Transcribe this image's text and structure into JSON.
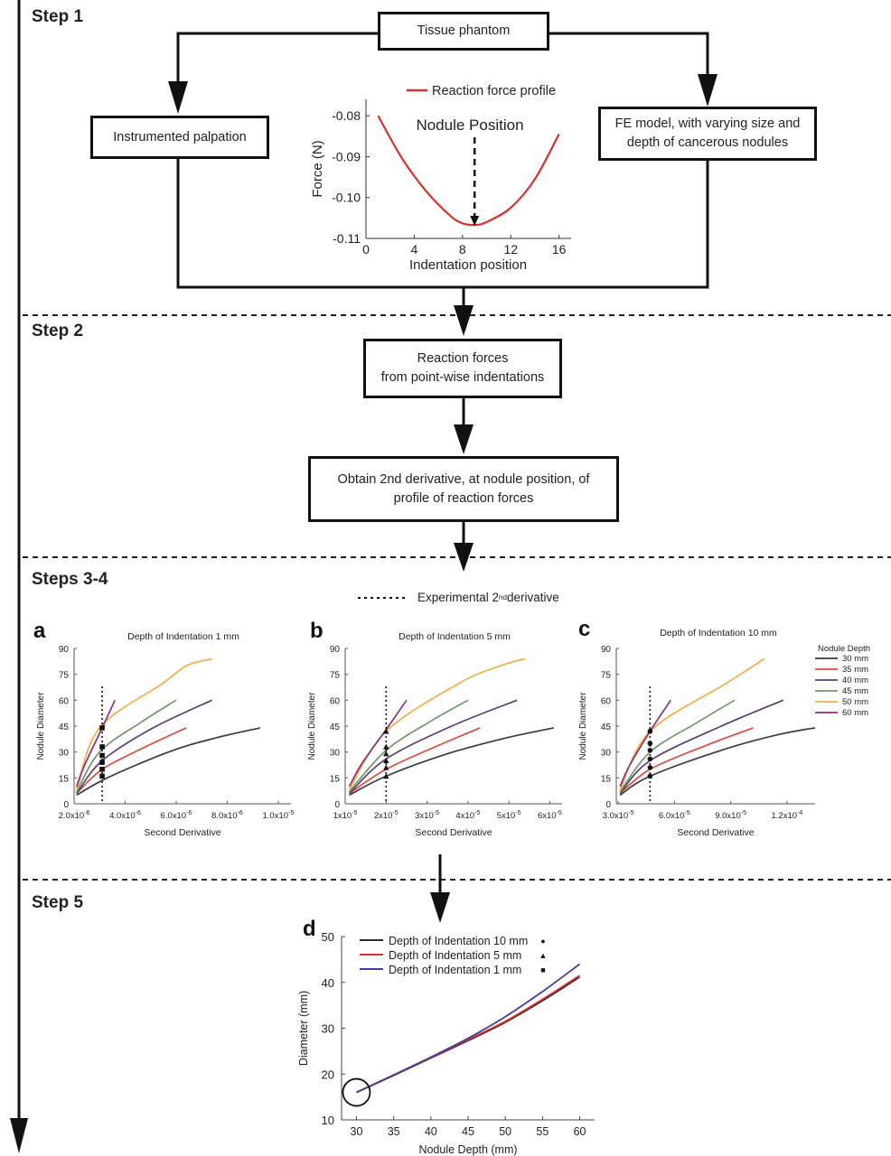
{
  "steps": {
    "s1": "Step 1",
    "s2": "Step 2",
    "s34": "Steps 3-4",
    "s5": "Step 5"
  },
  "boxes": {
    "tissue": "Tissue phantom",
    "palpation": "Instrumented palpation",
    "fe_model_1": "FE model, with varying size and",
    "fe_model_2": "depth of cancerous nodules",
    "reaction_1": "Reaction forces",
    "reaction_2": "from point-wise indentations",
    "derivative_1": "Obtain 2nd derivative, at nodule position, of",
    "derivative_2": "profile of reaction forces"
  },
  "profile_chart": {
    "legend": "Reaction force profile",
    "annotation": "Nodule Position",
    "ylabel": "Force (N)",
    "xlabel": "Indentation position",
    "xticks": [
      "0",
      "4",
      "8",
      "12",
      "16"
    ],
    "yticks": [
      "-0.08",
      "-0.09",
      "-0.10",
      "-0.11"
    ]
  },
  "experimental_legend": {
    "prefix": "Experimental 2",
    "sup": "nd",
    "suffix": " derivative"
  },
  "panel_letters": {
    "a": "a",
    "b": "b",
    "c": "c",
    "d": "d"
  },
  "small_charts": {
    "ylabel": "Nodule Diameter",
    "xlabel": "Second Derivative",
    "yticks": [
      "0",
      "15",
      "30",
      "45",
      "60",
      "75",
      "90"
    ],
    "legend_title": "Nodule Depth",
    "legend_items": [
      "30 mm",
      "35 mm",
      "40 mm",
      "45 mm",
      "50 mm",
      "60 mm"
    ],
    "a": {
      "title": "Depth of Indentation 1 mm",
      "xticks": [
        "2.0x10",
        "4.0x10",
        "6.0x10",
        "8.0x10",
        "1.0x10"
      ],
      "xexps": [
        "-6",
        "-6",
        "-6",
        "-6",
        "-5"
      ]
    },
    "b": {
      "title": "Depth of Indentation 5 mm",
      "xticks": [
        "1x10",
        "2x10",
        "3x10",
        "4x10",
        "5x10",
        "6x10"
      ],
      "xexps": [
        "-5",
        "-5",
        "-5",
        "-5",
        "-5",
        "-5"
      ]
    },
    "c": {
      "title": "Depth of Indentation 10 mm",
      "xticks": [
        "3.0x10",
        "6.0x10",
        "9.0x10",
        "1.2x10"
      ],
      "xexps": [
        "-5",
        "-5",
        "-5",
        "-4"
      ]
    }
  },
  "chart_data": [
    {
      "type": "line",
      "legend": "Reaction force profile",
      "xlabel": "Indentation position",
      "ylabel": "Force (N)",
      "xlim": [
        0,
        17
      ],
      "ylim": [
        -0.11,
        -0.076
      ],
      "series": [
        {
          "name": "Reaction force profile",
          "color": "#d9302a",
          "x": [
            1,
            3,
            5,
            7,
            8,
            9,
            10,
            12,
            14,
            16
          ],
          "y": [
            -0.08,
            -0.0905,
            -0.0985,
            -0.1045,
            -0.1063,
            -0.1067,
            -0.106,
            -0.1025,
            -0.0955,
            -0.0845
          ]
        }
      ],
      "annotation": {
        "text": "Nodule Position",
        "x": 9
      }
    },
    {
      "type": "line",
      "title": "Depth of Indentation 1 mm",
      "xlabel": "Second Derivative",
      "ylabel": "Nodule Diameter",
      "ylim": [
        0,
        90
      ],
      "experimental_x": 3.1e-06,
      "series": [
        {
          "name": "30 mm",
          "color": "#3a3a42",
          "x": [
            2.1e-06,
            3.3e-06,
            5.7e-06,
            7.5e-06,
            9.3e-06
          ],
          "y": [
            5,
            15,
            30,
            38,
            44
          ]
        },
        {
          "name": "35 mm",
          "color": "#e0483c",
          "x": [
            2.1e-06,
            3.1e-06,
            4.8e-06,
            6.4e-06
          ],
          "y": [
            6,
            20,
            33,
            44
          ]
        },
        {
          "name": "40 mm",
          "color": "#5b3d78",
          "x": [
            2.1e-06,
            3.1e-06,
            5.1e-06,
            7.4e-06
          ],
          "y": [
            6,
            25,
            44,
            60
          ]
        },
        {
          "name": "45 mm",
          "color": "#6d9a68",
          "x": [
            2.1e-06,
            3e-06,
            4.6e-06,
            6e-06
          ],
          "y": [
            7,
            30,
            47,
            60
          ]
        },
        {
          "name": "50 mm",
          "color": "#f4ad44",
          "x": [
            2.1e-06,
            3e-06,
            5.5e-06,
            6.4e-06,
            7.4e-06
          ],
          "y": [
            8,
            44,
            70,
            80,
            84
          ]
        },
        {
          "name": "60 mm",
          "color": "#8e2e77",
          "x": [
            2.1e-06,
            2.4e-06,
            3.1e-06,
            3.6e-06
          ],
          "y": [
            10,
            22,
            44,
            60
          ]
        }
      ],
      "markers": {
        "shape": "square",
        "x": 3.1e-06,
        "y": [
          16,
          20,
          24,
          28,
          33,
          44
        ]
      }
    },
    {
      "type": "line",
      "title": "Depth of Indentation 5 mm",
      "xlabel": "Second Derivative",
      "ylabel": "Nodule Diameter",
      "ylim": [
        0,
        90
      ],
      "experimental_x": 2e-05,
      "series": [
        {
          "name": "30 mm",
          "color": "#3a3a42",
          "x": [
            1.1e-05,
            2e-05,
            3.5e-05,
            4.9e-05,
            6.1e-05
          ],
          "y": [
            5,
            16,
            29,
            38,
            44
          ]
        },
        {
          "name": "35 mm",
          "color": "#e0483c",
          "x": [
            1.1e-05,
            2e-05,
            3.2e-05,
            4.3e-05
          ],
          "y": [
            6,
            20,
            33,
            44
          ]
        },
        {
          "name": "40 mm",
          "color": "#5b3d78",
          "x": [
            1.1e-05,
            2e-05,
            3.6e-05,
            5.2e-05
          ],
          "y": [
            6,
            26,
            45,
            60
          ]
        },
        {
          "name": "45 mm",
          "color": "#6d9a68",
          "x": [
            1.1e-05,
            2e-05,
            3.1e-05,
            4e-05
          ],
          "y": [
            7,
            31,
            48,
            60
          ]
        },
        {
          "name": "50 mm",
          "color": "#f4ad44",
          "x": [
            1.1e-05,
            2e-05,
            3.8e-05,
            4.8e-05,
            5.4e-05
          ],
          "y": [
            8,
            42,
            70,
            80,
            84
          ]
        },
        {
          "name": "60 mm",
          "color": "#8e2e77",
          "x": [
            1.1e-05,
            1.4e-05,
            2e-05,
            2.5e-05
          ],
          "y": [
            10,
            23,
            43,
            60
          ]
        }
      ],
      "markers": {
        "shape": "triangle",
        "x": 2e-05,
        "y": [
          16,
          21,
          25,
          29,
          33,
          42
        ]
      }
    },
    {
      "type": "line",
      "title": "Depth of Indentation 10 mm",
      "xlabel": "Second Derivative",
      "ylabel": "Nodule Diameter",
      "ylim": [
        0,
        90
      ],
      "experimental_x": 4.7e-05,
      "series": [
        {
          "name": "30 mm",
          "color": "#3a3a42",
          "x": [
            3.1e-05,
            4.7e-05,
            8.5e-05,
            0.000115,
            0.000135
          ],
          "y": [
            5,
            16,
            31,
            40,
            44
          ]
        },
        {
          "name": "35 mm",
          "color": "#e0483c",
          "x": [
            3.1e-05,
            4.7e-05,
            7.5e-05,
            0.000102
          ],
          "y": [
            6,
            20,
            33,
            44
          ]
        },
        {
          "name": "40 mm",
          "color": "#5b3d78",
          "x": [
            3.1e-05,
            4.7e-05,
            8.5e-05,
            0.000118
          ],
          "y": [
            6,
            25,
            45,
            60
          ]
        },
        {
          "name": "45 mm",
          "color": "#6d9a68",
          "x": [
            3.1e-05,
            4.7e-05,
            7.2e-05,
            9.2e-05
          ],
          "y": [
            7,
            30,
            47,
            60
          ]
        },
        {
          "name": "50 mm",
          "color": "#f4ad44",
          "x": [
            3.1e-05,
            4.7e-05,
            8.8e-05,
            0.000108
          ],
          "y": [
            8,
            42,
            70,
            84
          ]
        },
        {
          "name": "60 mm",
          "color": "#8e2e77",
          "x": [
            3.1e-05,
            3.6e-05,
            4.7e-05,
            5.8e-05
          ],
          "y": [
            10,
            22,
            42,
            60
          ]
        }
      ],
      "markers": {
        "shape": "circle",
        "x": 4.7e-05,
        "y": [
          16,
          21,
          26,
          31,
          35,
          42
        ]
      }
    },
    {
      "type": "line",
      "xlabel": "Nodule Depth (mm)",
      "ylabel": "Diameter (mm)",
      "xlim": [
        28,
        62
      ],
      "ylim": [
        10,
        50
      ],
      "xticks": [
        "30",
        "35",
        "40",
        "45",
        "50",
        "55",
        "60"
      ],
      "yticks": [
        "10",
        "20",
        "30",
        "40",
        "50"
      ],
      "series": [
        {
          "name": "Depth of Indentation 10 mm",
          "marker": "●",
          "color": "#2b2b33",
          "x": [
            30,
            35,
            40,
            45,
            50,
            55,
            60
          ],
          "y": [
            16,
            19.7,
            23.5,
            27.3,
            31.3,
            36,
            41.2
          ]
        },
        {
          "name": "Depth of Indentation 5 mm",
          "marker": "▲",
          "color": "#d9302a",
          "x": [
            30,
            35,
            40,
            45,
            50,
            55,
            60
          ],
          "y": [
            16,
            19.8,
            23.6,
            27.5,
            31.5,
            36.3,
            41.5
          ]
        },
        {
          "name": "Depth of Indentation 1 mm",
          "marker": "■",
          "color": "#4b3a9c",
          "x": [
            30,
            35,
            40,
            45,
            50,
            55,
            60
          ],
          "y": [
            16,
            19.8,
            23.7,
            27.8,
            32.5,
            38,
            44
          ]
        }
      ]
    }
  ]
}
